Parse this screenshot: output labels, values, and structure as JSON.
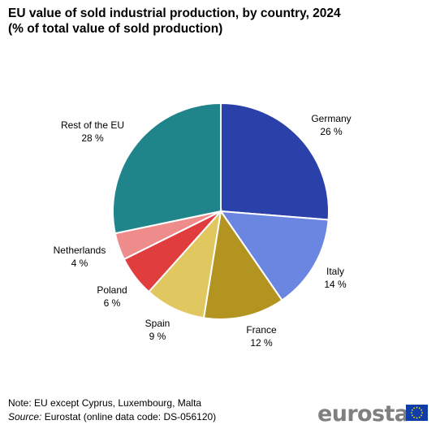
{
  "title_line1": "EU value of sold industrial production, by country, 2024",
  "title_line2": "(% of total value of sold production)",
  "chart_data": {
    "type": "pie",
    "title": "EU value of sold industrial production, by country, 2024",
    "subtitle": "(% of total value of sold production)",
    "slices": [
      {
        "label": "Germany",
        "value": 26,
        "value_label": "26 %",
        "color": "#2a41aa"
      },
      {
        "label": "Italy",
        "value": 14,
        "value_label": "14 %",
        "color": "#6b86e0"
      },
      {
        "label": "France",
        "value": 12,
        "value_label": "12 %",
        "color": "#b39421"
      },
      {
        "label": "Spain",
        "value": 9,
        "value_label": "9 %",
        "color": "#e1c760"
      },
      {
        "label": "Poland",
        "value": 6,
        "value_label": "6 %",
        "color": "#e03e3e"
      },
      {
        "label": "Netherlands",
        "value": 4,
        "value_label": "4 %",
        "color": "#ee8c8c"
      },
      {
        "label": "Rest of the EU",
        "value": 28,
        "value_label": "28 %",
        "color": "#20858a"
      }
    ]
  },
  "footer": {
    "note": "Note: EU except Cyprus, Luxembourg,  Malta",
    "source_label": "Source:",
    "source_text": " Eurostat (online data code: DS-056120)"
  },
  "logo": {
    "text": "eurostat",
    "flag_color": "#103ea8",
    "star_color": "#ffdd00"
  }
}
